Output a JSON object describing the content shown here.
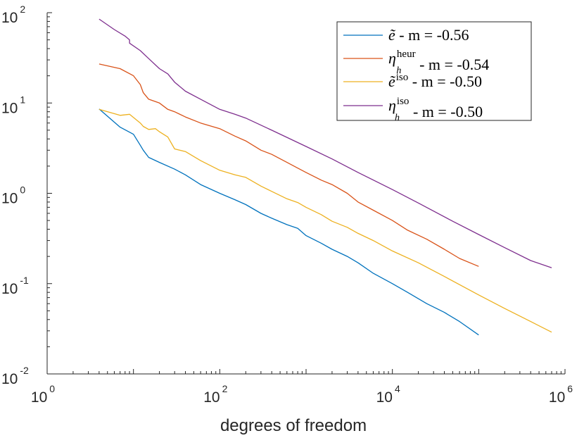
{
  "chart_data": {
    "type": "line",
    "xlabel": "degrees of freedom",
    "ylabel": "",
    "title": "",
    "x_scale": "log",
    "y_scale": "log",
    "xlim": [
      1,
      1000000
    ],
    "ylim": [
      0.01,
      100
    ],
    "x_ticks": [
      {
        "value": 1,
        "base": "10",
        "exp": "0"
      },
      {
        "value": 100,
        "base": "10",
        "exp": "2"
      },
      {
        "value": 10000,
        "base": "10",
        "exp": "4"
      },
      {
        "value": 1000000,
        "base": "10",
        "exp": "6"
      }
    ],
    "y_ticks": [
      {
        "value": 0.01,
        "base": "10",
        "exp": "-2"
      },
      {
        "value": 0.1,
        "base": "10",
        "exp": "-1"
      },
      {
        "value": 1,
        "base": "10",
        "exp": "0"
      },
      {
        "value": 10,
        "base": "10",
        "exp": "1"
      },
      {
        "value": 100,
        "base": "10",
        "exp": "2"
      }
    ],
    "grid": false,
    "legend_position": "top-right",
    "series": [
      {
        "legend": {
          "symbol": "ẽ",
          "sup": "",
          "sub": "",
          "suffix": " - m = -0.56"
        },
        "color": "#0072bd",
        "x": [
          4,
          7,
          10,
          12,
          13,
          15,
          20,
          30,
          40,
          60,
          100,
          150,
          200,
          300,
          400,
          600,
          800,
          1000,
          1500,
          2000,
          3000,
          4000,
          6000,
          10000,
          15000,
          25000,
          40000,
          60000,
          100000
        ],
        "y": [
          8.6,
          5.4,
          4.5,
          3.4,
          3.0,
          2.5,
          2.2,
          1.85,
          1.6,
          1.25,
          1.0,
          0.85,
          0.75,
          0.6,
          0.53,
          0.45,
          0.41,
          0.34,
          0.28,
          0.24,
          0.2,
          0.17,
          0.13,
          0.1,
          0.08,
          0.06,
          0.048,
          0.038,
          0.027
        ]
      },
      {
        "legend": {
          "symbol": "η",
          "sup": "heur",
          "sub": "h",
          "suffix": " - m = -0.54"
        },
        "color": "#d95319",
        "x": [
          4,
          7,
          10,
          12,
          13,
          15,
          20,
          25,
          30,
          40,
          60,
          100,
          150,
          200,
          300,
          400,
          600,
          800,
          1000,
          1500,
          2000,
          3000,
          4000,
          6000,
          10000,
          15000,
          25000,
          40000,
          60000,
          100000
        ],
        "y": [
          27.0,
          24.0,
          20.0,
          16.0,
          13.0,
          11.0,
          10.0,
          8.5,
          8.0,
          7.0,
          6.0,
          5.2,
          4.3,
          3.8,
          3.0,
          2.7,
          2.2,
          1.9,
          1.7,
          1.4,
          1.25,
          1.0,
          0.8,
          0.65,
          0.5,
          0.39,
          0.31,
          0.24,
          0.19,
          0.155
        ]
      },
      {
        "legend": {
          "symbol": "ẽ",
          "sup": "iso",
          "sub": "",
          "suffix": " - m = -0.50"
        },
        "color": "#edb120",
        "x": [
          4,
          7,
          9,
          12,
          13,
          15,
          18,
          20,
          25,
          30,
          40,
          60,
          100,
          150,
          200,
          300,
          400,
          600,
          800,
          1000,
          1500,
          2000,
          3000,
          4000,
          6000,
          10000,
          20000,
          40000,
          100000,
          200000,
          400000,
          700000
        ],
        "y": [
          8.5,
          7.3,
          7.5,
          6.0,
          5.5,
          5.1,
          5.2,
          4.8,
          4.2,
          3.1,
          2.9,
          2.3,
          1.8,
          1.6,
          1.5,
          1.2,
          1.05,
          0.87,
          0.79,
          0.7,
          0.58,
          0.49,
          0.42,
          0.36,
          0.3,
          0.23,
          0.17,
          0.12,
          0.075,
          0.053,
          0.038,
          0.029
        ]
      },
      {
        "legend": {
          "symbol": "η",
          "sup": "iso",
          "sub": "h",
          "suffix": " - m = -0.50"
        },
        "color": "#7e2f8e",
        "x": [
          4,
          6,
          8,
          9,
          9,
          12,
          15,
          20,
          25,
          30,
          40,
          60,
          100,
          150,
          200,
          400,
          1000,
          2000,
          4000,
          10000,
          20000,
          50000,
          100000,
          200000,
          400000,
          700000
        ],
        "y": [
          85.0,
          65.0,
          55.0,
          50.0,
          46.0,
          38.0,
          31.0,
          24.0,
          21.0,
          17.0,
          13.5,
          11.0,
          8.5,
          7.5,
          6.8,
          5.0,
          3.3,
          2.4,
          1.7,
          1.1,
          0.78,
          0.49,
          0.35,
          0.25,
          0.18,
          0.15
        ]
      }
    ]
  }
}
